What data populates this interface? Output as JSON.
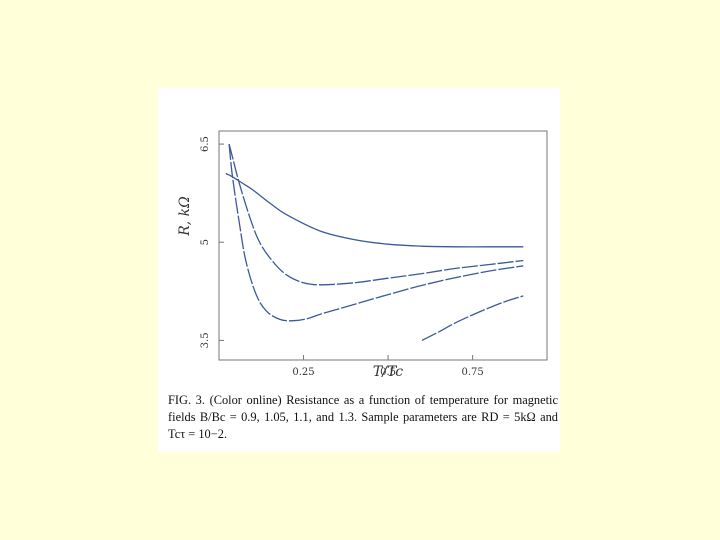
{
  "chart_data": {
    "type": "line",
    "xlabel": "T/Tc",
    "ylabel": "R, kΩ",
    "xlim": [
      0.0,
      0.97
    ],
    "ylim": [
      3.2,
      6.7
    ],
    "xticks": [
      0.25,
      0.5,
      0.75
    ],
    "xtick_labels": [
      "0.25",
      "0.5",
      "0.75"
    ],
    "yticks": [
      3.5,
      5,
      6.5
    ],
    "ytick_labels": [
      "3.5",
      "5",
      "6.5"
    ],
    "grid": false,
    "line_color": "#3b5a9a",
    "series": [
      {
        "x": [
          0.02,
          0.04,
          0.07,
          0.1,
          0.15,
          0.2,
          0.3,
          0.4,
          0.5,
          0.6,
          0.7,
          0.8,
          0.9
        ],
        "y": [
          6.05,
          6.0,
          5.9,
          5.8,
          5.6,
          5.42,
          5.17,
          5.04,
          4.97,
          4.94,
          4.93,
          4.93,
          4.93
        ]
      },
      {
        "x": [
          0.03,
          0.04,
          0.06,
          0.09,
          0.12,
          0.16,
          0.2,
          0.25,
          0.3,
          0.4,
          0.5,
          0.6,
          0.7,
          0.8,
          0.9
        ],
        "y": [
          6.5,
          6.3,
          5.9,
          5.4,
          5.0,
          4.7,
          4.5,
          4.38,
          4.35,
          4.38,
          4.45,
          4.52,
          4.6,
          4.66,
          4.72
        ]
      },
      {
        "x": [
          0.03,
          0.04,
          0.06,
          0.08,
          0.11,
          0.14,
          0.18,
          0.22,
          0.26,
          0.3,
          0.4,
          0.5,
          0.6,
          0.7,
          0.8,
          0.9
        ],
        "y": [
          6.5,
          6.0,
          5.3,
          4.7,
          4.2,
          3.95,
          3.82,
          3.8,
          3.83,
          3.9,
          4.05,
          4.2,
          4.34,
          4.46,
          4.56,
          4.64
        ]
      },
      {
        "x": [
          0.6,
          0.65,
          0.7,
          0.75,
          0.8,
          0.85,
          0.9
        ],
        "y": [
          3.5,
          3.63,
          3.77,
          3.89,
          4.0,
          4.1,
          4.18
        ]
      }
    ]
  },
  "caption": {
    "text": "FIG. 3. (Color online) Resistance as a function of temperature for magnetic fields B/Bc = 0.9, 1.05, 1.1, and 1.3. Sample parameters are RD = 5kΩ and Tcτ = 10−2."
  }
}
